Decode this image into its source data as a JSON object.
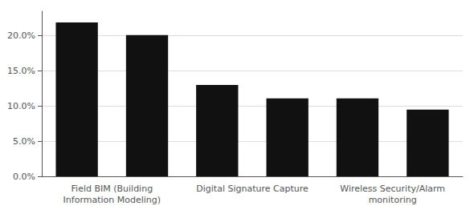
{
  "chart_data": {
    "type": "bar",
    "categories": [
      "Field BIM (Building\nInformation Modeling)",
      "Digital Signature Capture",
      "Wireless Security/Alarm\nmonitoring"
    ],
    "series": [
      {
        "color": "#111111",
        "values": [
          0.219,
          0.13,
          0.111
        ]
      },
      {
        "color": "#111111",
        "values": [
          0.201,
          0.111,
          0.095
        ]
      }
    ],
    "ylim": [
      0,
      0.235
    ],
    "yticks": [
      {
        "value": 0.0,
        "label": "0.0%"
      },
      {
        "value": 0.05,
        "label": "5.0%"
      },
      {
        "value": 0.1,
        "label": "10.0%"
      },
      {
        "value": 0.15,
        "label": "15.0%"
      },
      {
        "value": 0.2,
        "label": "20.0%"
      }
    ],
    "grid": true
  }
}
